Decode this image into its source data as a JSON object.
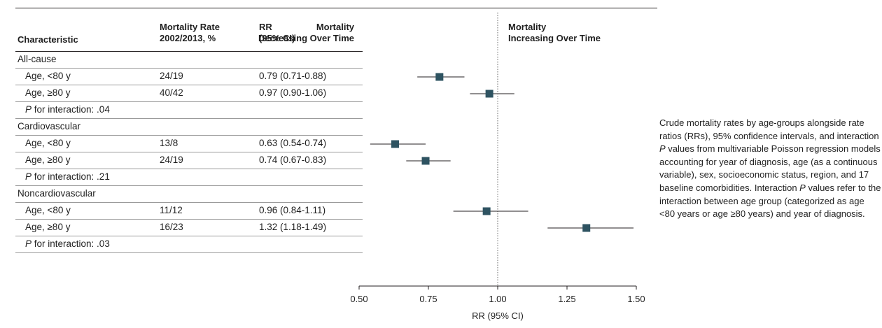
{
  "headers": {
    "characteristic": "Characteristic",
    "rate_line1": "Mortality Rate",
    "rate_line2": "2002/2013, %",
    "rr_line1": "RR",
    "rr_line2": "(95% CI)",
    "decreasing_line1": "Mortality",
    "decreasing_line2": "Decreasing Over Time",
    "increasing_line1": "Mortality",
    "increasing_line2": "Increasing Over Time"
  },
  "rows": [
    {
      "kind": "group",
      "label": "All-cause"
    },
    {
      "kind": "sub",
      "label": "Age, <80 y",
      "rate": "24/19",
      "rr_text": "0.79 (0.71-0.88)"
    },
    {
      "kind": "sub",
      "label": "Age, ≥80 y",
      "rate": "40/42",
      "rr_text": "0.97 (0.90-1.06)"
    },
    {
      "kind": "pint",
      "p_label": "P",
      "label": " for interaction: .04"
    },
    {
      "kind": "group",
      "label": "Cardiovascular"
    },
    {
      "kind": "sub",
      "label": "Age, <80 y",
      "rate": "13/8",
      "rr_text": "0.63 (0.54-0.74)"
    },
    {
      "kind": "sub",
      "label": "Age, ≥80 y",
      "rate": "24/19",
      "rr_text": "0.74 (0.67-0.83)"
    },
    {
      "kind": "pint",
      "p_label": "P",
      "label": " for interaction: .21"
    },
    {
      "kind": "group",
      "label": "Noncardiovascular"
    },
    {
      "kind": "sub",
      "label": "Age, <80 y",
      "rate": "11/12",
      "rr_text": "0.96 (0.84-1.11)"
    },
    {
      "kind": "sub",
      "label": "Age, ≥80 y",
      "rate": "16/23",
      "rr_text": "1.32 (1.18-1.49)"
    },
    {
      "kind": "pint",
      "p_label": "P",
      "label": " for interaction: .03"
    }
  ],
  "chart_data": {
    "type": "scatter",
    "xlabel": "RR (95% CI)",
    "xlim": [
      0.5,
      1.5
    ],
    "xticks": [
      "0.50",
      "0.75",
      "1.00",
      "1.25",
      "1.50"
    ],
    "reference_line": 1.0,
    "points": [
      {
        "group": "All-cause",
        "category": "Age, <80 y",
        "rr": 0.79,
        "lo": 0.71,
        "hi": 0.88
      },
      {
        "group": "All-cause",
        "category": "Age, ≥80 y",
        "rr": 0.97,
        "lo": 0.9,
        "hi": 1.06
      },
      {
        "group": "Cardiovascular",
        "category": "Age, <80 y",
        "rr": 0.63,
        "lo": 0.54,
        "hi": 0.74
      },
      {
        "group": "Cardiovascular",
        "category": "Age, ≥80 y",
        "rr": 0.74,
        "lo": 0.67,
        "hi": 0.83
      },
      {
        "group": "Noncardiovascular",
        "category": "Age, <80 y",
        "rr": 0.96,
        "lo": 0.84,
        "hi": 1.11
      },
      {
        "group": "Noncardiovascular",
        "category": "Age, ≥80 y",
        "rr": 1.32,
        "lo": 1.18,
        "hi": 1.49
      }
    ],
    "marker_color": "#2e5361",
    "line_color": "#231f20"
  },
  "caption": {
    "part1": "Crude mortality rates by age-groups alongside rate ratios (RRs), 95% confidence intervals, and interaction ",
    "p1": "P",
    "part2": " values from multivariable Poisson regression models accounting for year of diagnosis, age (as a continuous variable), sex, socioeconomic status, region, and 17 baseline comorbidities. Interaction ",
    "p2": "P",
    "part3": " values refer to the interaction between age group (categorized as age <80 years or age ≥80 years) and year of diagnosis."
  }
}
